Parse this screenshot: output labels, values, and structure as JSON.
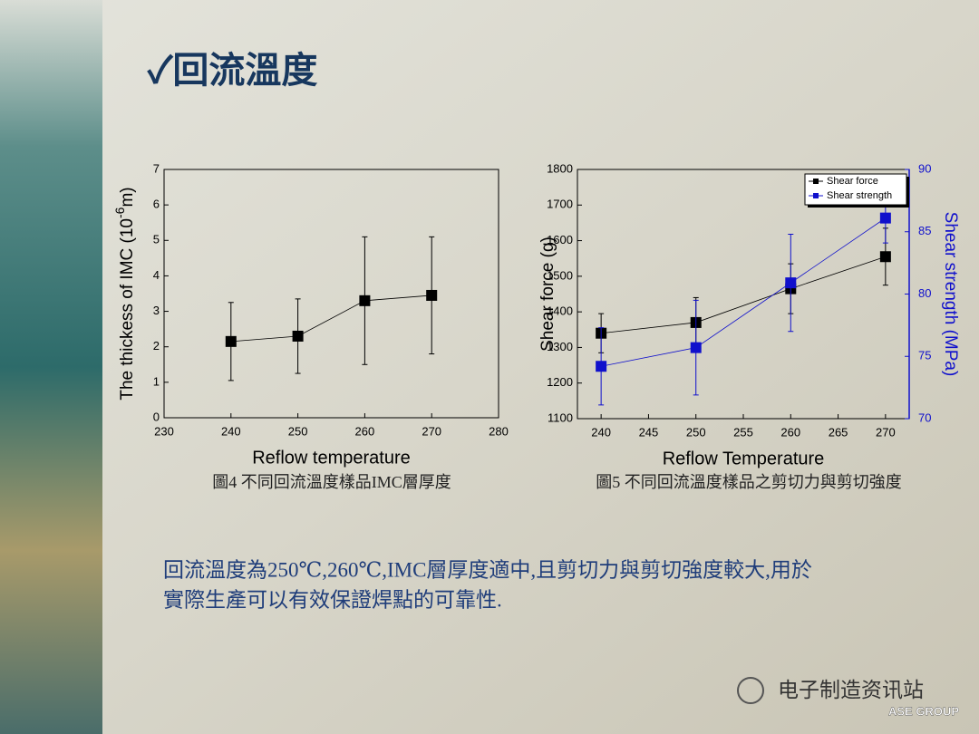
{
  "slide": {
    "title": "✓回流溫度",
    "captions": [
      "圖4 不同回流溫度樣品IMC層厚度",
      "圖5 不同回流溫度樣品之剪切力與剪切強度"
    ],
    "body": [
      "回流溫度為250℃,260℃,IMC層厚度適中,且剪切力與剪切強度較大,用於",
      "實際生產可以有效保證焊點的可靠性."
    ],
    "watermark": "电子制造资讯站",
    "logo": "ASE GROUP"
  },
  "chart_data": [
    {
      "type": "line",
      "xlabel": "Reflow temperature",
      "ylabel": [
        "The thickess of IMC (10",
        "-6",
        "m)"
      ],
      "x": [
        240,
        250,
        260,
        270
      ],
      "series": [
        {
          "name": "IMC thickness",
          "color": "#000000",
          "values": [
            2.15,
            2.3,
            3.3,
            3.45
          ],
          "errors": [
            1.1,
            1.05,
            1.8,
            1.65
          ]
        }
      ],
      "xlim": [
        230,
        280
      ],
      "xticks": [
        230,
        240,
        250,
        260,
        270,
        280
      ],
      "ylim": [
        0,
        7
      ],
      "yticks": [
        0,
        1,
        2,
        3,
        4,
        5,
        6,
        7
      ],
      "legend": false
    },
    {
      "type": "line",
      "xlabel": "Reflow Temperature",
      "ylabel": "Shear force (g)",
      "y2label": "Shear strength (MPa)",
      "x": [
        240,
        250,
        260,
        270
      ],
      "series": [
        {
          "name": "Shear force",
          "color": "#000000",
          "values": [
            1340,
            1370,
            1465,
            1555
          ],
          "errors": [
            55,
            70,
            70,
            80
          ]
        },
        {
          "name": "Shear strength",
          "color": "#1010cc",
          "axis": "y2",
          "values": [
            74.2,
            75.7,
            80.9,
            86.1
          ],
          "errors": [
            3.1,
            3.8,
            3.9,
            2
          ]
        }
      ],
      "xlim": [
        237.5,
        272.5
      ],
      "xticks": [
        240,
        245,
        250,
        255,
        260,
        265,
        270
      ],
      "ylim": [
        1100,
        1800
      ],
      "yticks": [
        1100,
        1200,
        1300,
        1400,
        1500,
        1600,
        1700,
        1800
      ],
      "y2lim": [
        70,
        90
      ],
      "y2ticks": [
        70,
        75,
        80,
        85,
        90
      ],
      "y2color": "#1010cc",
      "legend": "upper right"
    }
  ]
}
